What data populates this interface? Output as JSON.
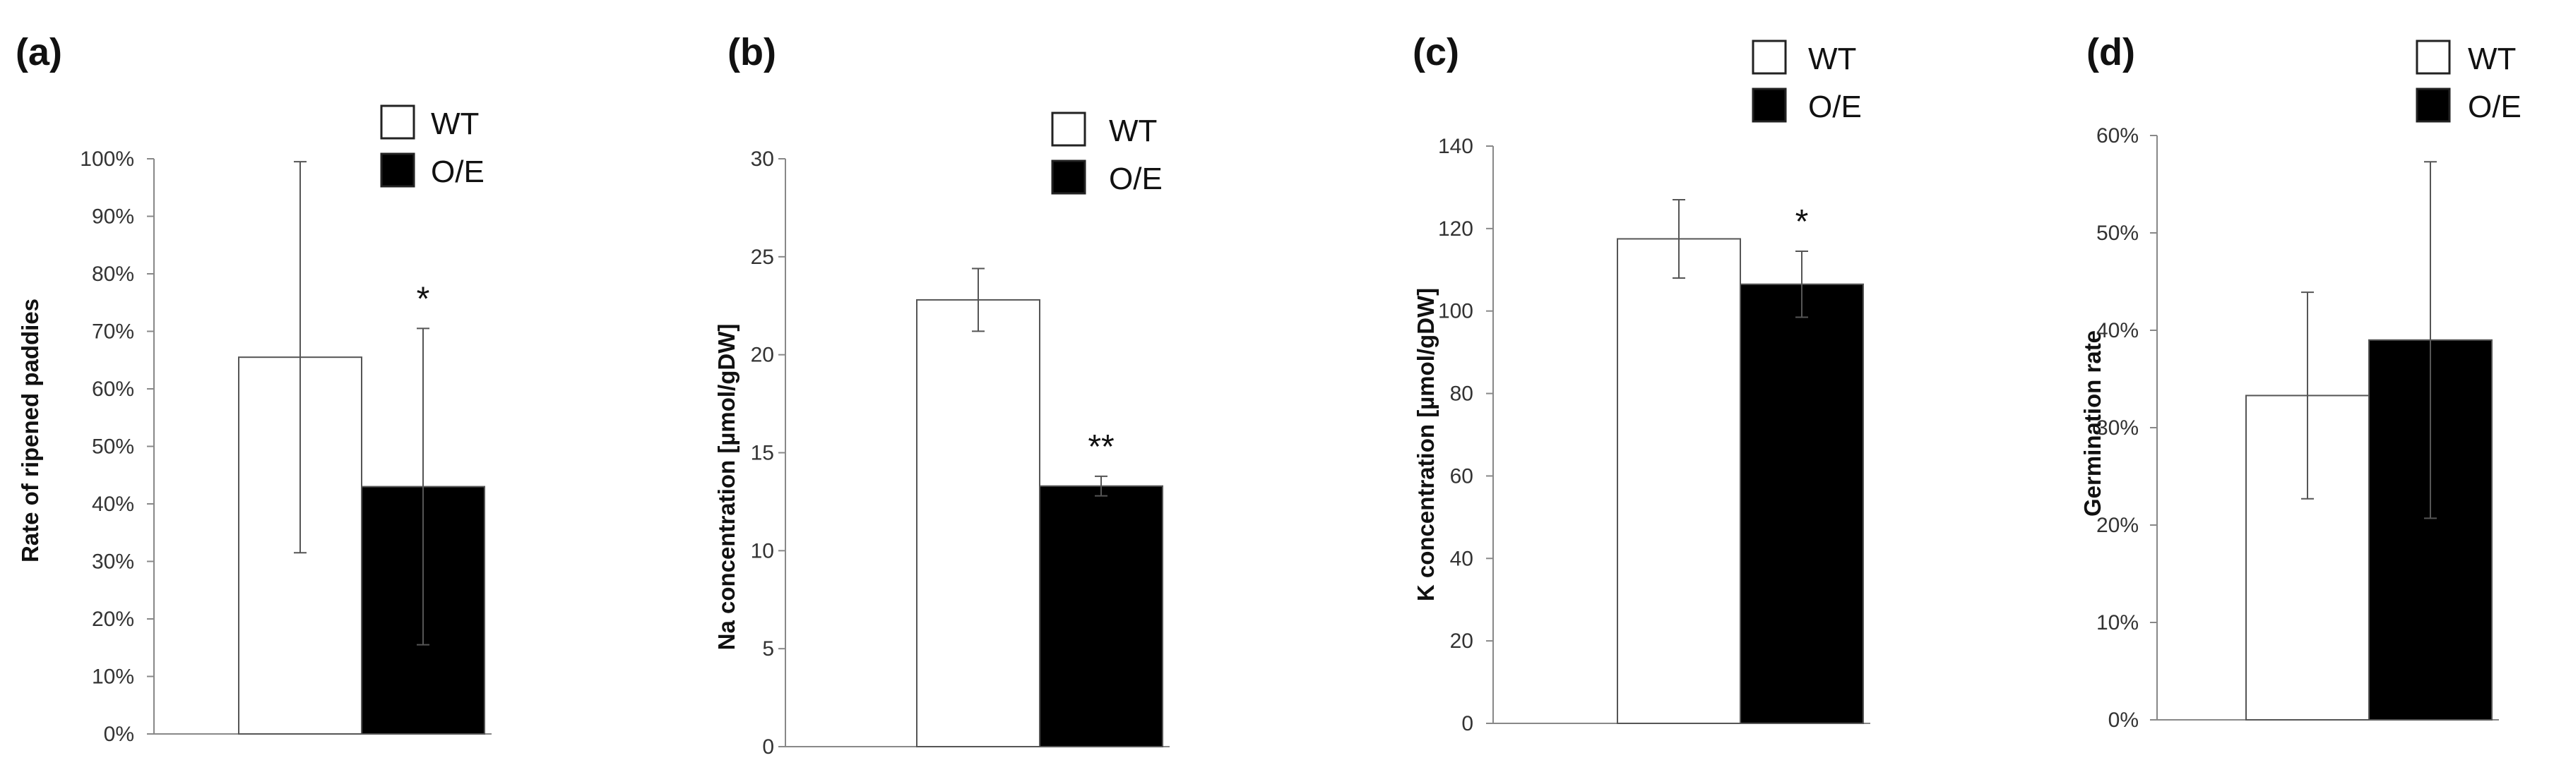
{
  "colors": {
    "wt_fill": "#ffffff",
    "oe_fill": "#000000",
    "outline": "#555555",
    "axis": "#888888",
    "errorbar": "#555555"
  },
  "chart_data": [
    {
      "type": "bar",
      "panel_label": "(a)",
      "ylabel": "Rate of ripened paddies",
      "ylim": [
        0,
        1.0
      ],
      "yticks": [
        0,
        0.1,
        0.2,
        0.3,
        0.4,
        0.5,
        0.6,
        0.7,
        0.8,
        0.9,
        1.0
      ],
      "ytick_labels": [
        "0%",
        "10%",
        "20%",
        "30%",
        "40%",
        "50%",
        "60%",
        "70%",
        "80%",
        "90%",
        "100%"
      ],
      "legend_position": "top",
      "series": [
        {
          "name": "WT",
          "value": 0.655,
          "error": 0.34,
          "significance": ""
        },
        {
          "name": "O/E",
          "value": 0.43,
          "error": 0.275,
          "significance": "*"
        }
      ]
    },
    {
      "type": "bar",
      "panel_label": "(b)",
      "ylabel": "Na concentration [µmol/gDW]",
      "ylim": [
        0,
        30
      ],
      "yticks": [
        0,
        5,
        10,
        15,
        20,
        25,
        30
      ],
      "ytick_labels": [
        "0",
        "5",
        "10",
        "15",
        "20",
        "25",
        "30"
      ],
      "legend_position": "top-right",
      "series": [
        {
          "name": "WT",
          "value": 22.8,
          "error": 1.6,
          "significance": ""
        },
        {
          "name": "O/E",
          "value": 13.3,
          "error": 0.5,
          "significance": "**"
        }
      ]
    },
    {
      "type": "bar",
      "panel_label": "(c)",
      "ylabel": "K concentration [µmol/gDW]",
      "ylim": [
        0,
        140
      ],
      "yticks": [
        0,
        20,
        40,
        60,
        80,
        100,
        120,
        140
      ],
      "ytick_labels": [
        "0",
        "20",
        "40",
        "60",
        "80",
        "100",
        "120",
        "140"
      ],
      "legend_position": "top-right",
      "series": [
        {
          "name": "WT",
          "value": 117.5,
          "error": 9.5,
          "significance": ""
        },
        {
          "name": "O/E",
          "value": 106.5,
          "error": 8.0,
          "significance": "*"
        }
      ]
    },
    {
      "type": "bar",
      "panel_label": "(d)",
      "ylabel": "Germination rate",
      "ylim": [
        0,
        0.6
      ],
      "yticks": [
        0,
        0.1,
        0.2,
        0.3,
        0.4,
        0.5,
        0.6
      ],
      "ytick_labels": [
        "0%",
        "10%",
        "20%",
        "30%",
        "40%",
        "50%",
        "60%"
      ],
      "legend_position": "top-right",
      "series": [
        {
          "name": "WT",
          "value": 0.333,
          "error": 0.106,
          "significance": ""
        },
        {
          "name": "O/E",
          "value": 0.39,
          "error": 0.183,
          "significance": ""
        }
      ]
    }
  ]
}
